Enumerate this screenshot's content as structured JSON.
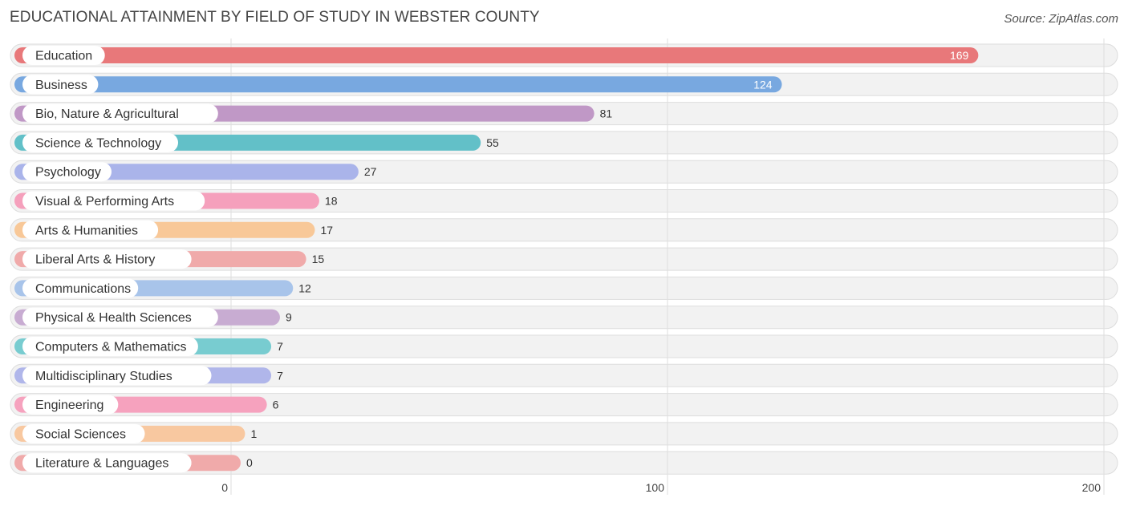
{
  "chart_data": {
    "type": "bar",
    "orientation": "horizontal",
    "title": "EDUCATIONAL ATTAINMENT BY FIELD OF STUDY IN WEBSTER COUNTY",
    "source": "Source: ZipAtlas.com",
    "xlim": [
      0,
      200
    ],
    "ticks": [
      0,
      100,
      200
    ],
    "grid": true,
    "categories": [
      "Education",
      "Business",
      "Bio, Nature & Agricultural",
      "Science & Technology",
      "Psychology",
      "Visual & Performing Arts",
      "Arts & Humanities",
      "Liberal Arts & History",
      "Communications",
      "Physical & Health Sciences",
      "Computers & Mathematics",
      "Multidisciplinary Studies",
      "Engineering",
      "Social Sciences",
      "Literature & Languages"
    ],
    "values": [
      169,
      124,
      81,
      55,
      27,
      18,
      17,
      15,
      12,
      9,
      7,
      7,
      6,
      1,
      0
    ],
    "colors": [
      "#e8787a",
      "#78a8e0",
      "#c098c6",
      "#62c0c8",
      "#aab4ea",
      "#f5a0bc",
      "#f8c898",
      "#f0aaaa",
      "#a8c4ea",
      "#c8acd2",
      "#78ccd0",
      "#b0b6ea",
      "#f6a2be",
      "#f8c8a0",
      "#f0aaaa"
    ]
  }
}
